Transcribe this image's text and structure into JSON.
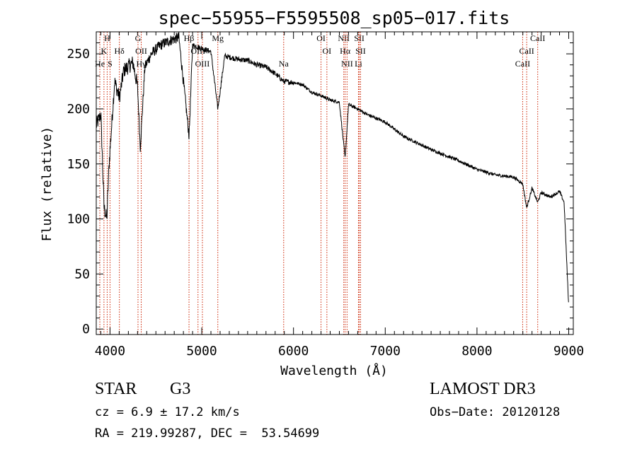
{
  "chart_data": {
    "type": "line",
    "title": "spec−55955−F5595508_sp05−017.fits",
    "xlabel": "Wavelength (Å)",
    "ylabel": "Flux (relative)",
    "xlim": [
      3850,
      9050
    ],
    "ylim": [
      -5,
      270
    ],
    "xticks": [
      4000,
      5000,
      6000,
      7000,
      8000,
      9000
    ],
    "yticks": [
      0,
      50,
      100,
      150,
      200,
      250
    ],
    "xtick_labels": [
      "4000",
      "5000",
      "6000",
      "7000",
      "8000",
      "9000"
    ],
    "ytick_labels": [
      "0",
      "50",
      "100",
      "150",
      "200",
      "250"
    ],
    "spectrum_anchors": {
      "x": [
        3850,
        3900,
        3935,
        3965,
        3990,
        4050,
        4102,
        4150,
        4250,
        4300,
        4330,
        4380,
        4450,
        4550,
        4650,
        4750,
        4862,
        4900,
        5000,
        5100,
        5175,
        5250,
        5400,
        5500,
        5600,
        5700,
        5800,
        5893,
        6000,
        6100,
        6200,
        6300,
        6400,
        6500,
        6563,
        6600,
        6700,
        6800,
        7000,
        7200,
        7500,
        7800,
        8000,
        8200,
        8400,
        8498,
        8542,
        8600,
        8662,
        8700,
        8800,
        8900,
        8950,
        9000
      ],
      "y": [
        185,
        195,
        110,
        100,
        150,
        225,
        210,
        235,
        242,
        220,
        165,
        238,
        250,
        258,
        262,
        265,
        175,
        258,
        255,
        252,
        200,
        248,
        245,
        244,
        240,
        238,
        232,
        225,
        224,
        222,
        215,
        212,
        208,
        206,
        155,
        204,
        200,
        195,
        188,
        175,
        163,
        153,
        145,
        140,
        138,
        132,
        110,
        128,
        115,
        124,
        120,
        125,
        115,
        20
      ]
    },
    "lines": [
      {
        "label": "H",
        "x": 3969,
        "row": 0
      },
      {
        "label": "K",
        "x": 3934,
        "row": 1
      },
      {
        "label": "He",
        "x": 3889,
        "row": 2
      },
      {
        "label": "S",
        "x": 4000,
        "row": 2
      },
      {
        "label": "Hδ",
        "x": 4102,
        "row": 1
      },
      {
        "label": "G",
        "x": 4305,
        "row": 0
      },
      {
        "label": "OII",
        "x": 4340,
        "row": 1
      },
      {
        "label": "Hγ",
        "x": 4340,
        "row": 2
      },
      {
        "label": "Hβ",
        "x": 4861,
        "row": 0
      },
      {
        "label": "OIII",
        "x": 4959,
        "row": 1
      },
      {
        "label": "OIII",
        "x": 5007,
        "row": 2
      },
      {
        "label": "Mg",
        "x": 5175,
        "row": 0
      },
      {
        "label": "Na",
        "x": 5893,
        "row": 2
      },
      {
        "label": "OI",
        "x": 6300,
        "row": 0
      },
      {
        "label": "OI",
        "x": 6364,
        "row": 1
      },
      {
        "label": "NII",
        "x": 6548,
        "row": 0
      },
      {
        "label": "Hα",
        "x": 6563,
        "row": 1
      },
      {
        "label": "NII",
        "x": 6584,
        "row": 2
      },
      {
        "label": "SII",
        "x": 6717,
        "row": 0
      },
      {
        "label": "SII",
        "x": 6731,
        "row": 1
      },
      {
        "label": "Li",
        "x": 6708,
        "row": 2
      },
      {
        "label": "CaII",
        "x": 8662,
        "row": 0
      },
      {
        "label": "CaII",
        "x": 8542,
        "row": 1
      },
      {
        "label": "CaII",
        "x": 8498,
        "row": 2
      }
    ]
  },
  "footer": {
    "object_class": "STAR",
    "subclass": "G3",
    "survey": "LAMOST DR3",
    "cz": "cz = 6.9 ± 17.2 km/s",
    "obs_date": "Obs−Date: 20120128",
    "coords": "RA = 219.99287, DEC =  53.54699"
  }
}
